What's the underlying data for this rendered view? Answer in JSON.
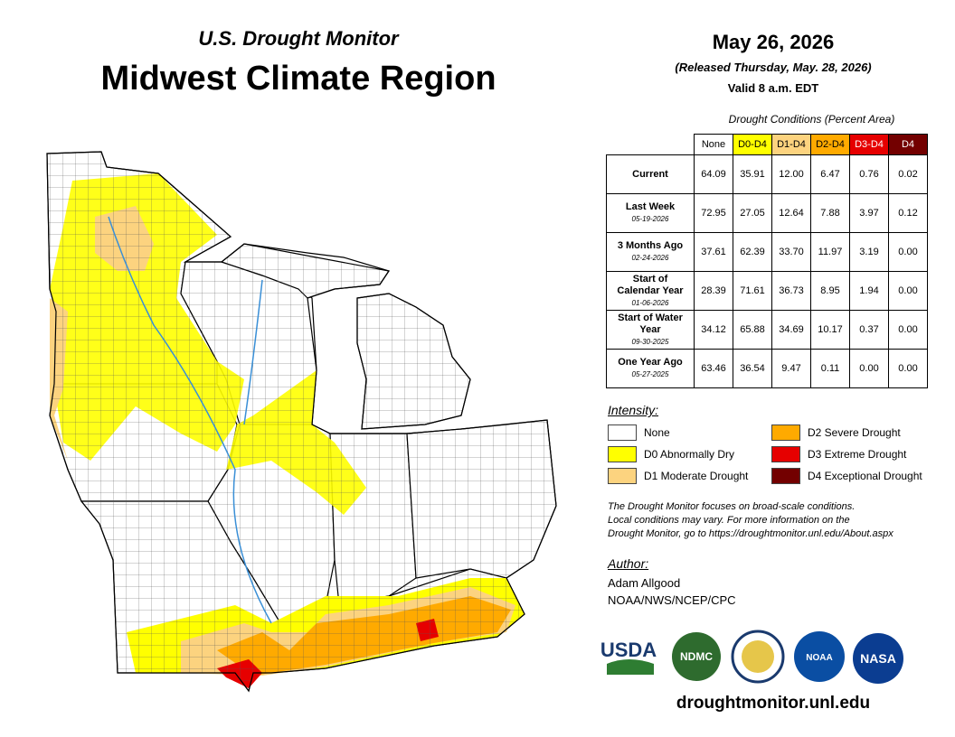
{
  "header": {
    "subtitle": "U.S. Drought Monitor",
    "title": "Midwest Climate Region"
  },
  "date": {
    "date": "May 26, 2026",
    "released": "(Released Thursday, May. 28, 2026)",
    "valid": "Valid 8 a.m. EDT"
  },
  "table": {
    "caption": "Drought Conditions (Percent Area)",
    "columns": [
      {
        "label": "None",
        "color": "#ffffff",
        "text": "#000000"
      },
      {
        "label": "D0-D4",
        "color": "#ffff00",
        "text": "#000000"
      },
      {
        "label": "D1-D4",
        "color": "#fcd37f",
        "text": "#000000"
      },
      {
        "label": "D2-D4",
        "color": "#ffaa00",
        "text": "#000000"
      },
      {
        "label": "D3-D4",
        "color": "#e60000",
        "text": "#ffffff"
      },
      {
        "label": "D4",
        "color": "#730000",
        "text": "#ffffff"
      }
    ],
    "rows": [
      {
        "label": "Current",
        "values": [
          "64.09",
          "35.91",
          "12.00",
          "6.47",
          "0.76",
          "0.02"
        ]
      },
      {
        "label": "Last Week",
        "date": "05-19-2026",
        "values": [
          "72.95",
          "27.05",
          "12.64",
          "7.88",
          "3.97",
          "0.12"
        ]
      },
      {
        "label": "3 Months Ago",
        "date": "02-24-2026",
        "values": [
          "37.61",
          "62.39",
          "33.70",
          "11.97",
          "3.19",
          "0.00"
        ]
      },
      {
        "label": "Start of Calendar Year",
        "date": "01-06-2026",
        "values": [
          "28.39",
          "71.61",
          "36.73",
          "8.95",
          "1.94",
          "0.00"
        ]
      },
      {
        "label": "Start of Water Year",
        "date": "09-30-2025",
        "values": [
          "34.12",
          "65.88",
          "34.69",
          "10.17",
          "0.37",
          "0.00"
        ]
      },
      {
        "label": "One Year Ago",
        "date": "05-27-2025",
        "values": [
          "63.46",
          "36.54",
          "9.47",
          "0.11",
          "0.00",
          "0.00"
        ]
      }
    ]
  },
  "legend": {
    "title": "Intensity:",
    "items": [
      {
        "label": "None",
        "color": "#ffffff"
      },
      {
        "label": "D0 Abnormally Dry",
        "color": "#ffff00"
      },
      {
        "label": "D1 Moderate Drought",
        "color": "#fcd37f"
      },
      {
        "label": "D2 Severe Drought",
        "color": "#ffaa00"
      },
      {
        "label": "D3 Extreme Drought",
        "color": "#e60000"
      },
      {
        "label": "D4 Exceptional Drought",
        "color": "#730000"
      }
    ]
  },
  "note": [
    "The Drought Monitor focuses on broad-scale conditions.",
    "Local conditions may vary. For more information on the",
    "Drought Monitor, go to https://droughtmonitor.unl.edu/About.aspx"
  ],
  "author": {
    "title": "Author:",
    "name": "Adam Allgood",
    "org": "NOAA/NWS/NCEP/CPC"
  },
  "logos": [
    "USDA",
    "NDMC",
    "NOAA",
    "NASA"
  ],
  "footer": "droughtmonitor.unl.edu"
}
